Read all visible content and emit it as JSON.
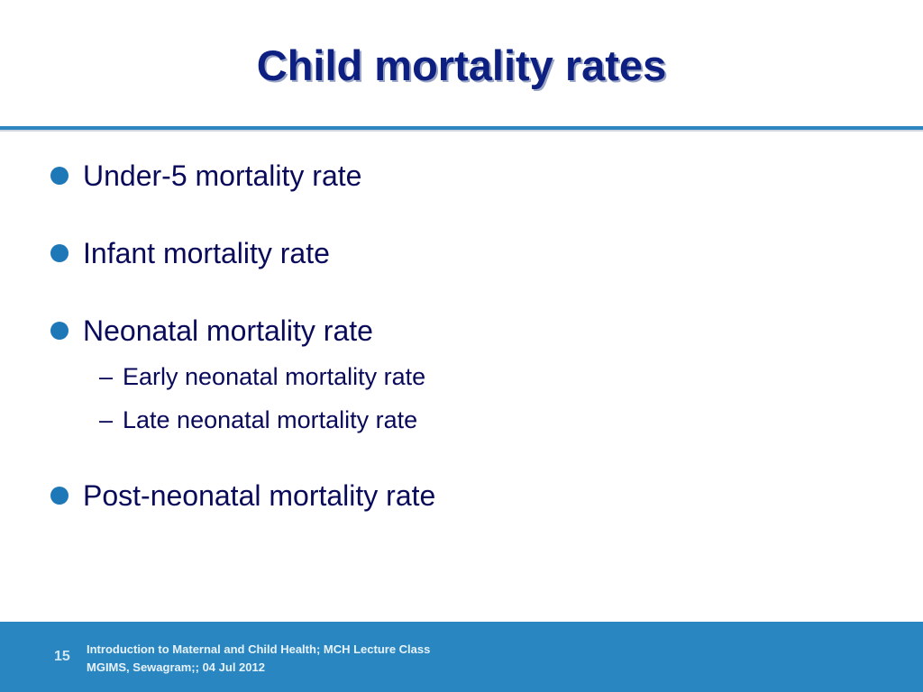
{
  "slide": {
    "title": "Child mortality rates",
    "bullets": [
      {
        "text": "Under-5 mortality rate"
      },
      {
        "text": "Infant mortality rate"
      },
      {
        "text": "Neonatal mortality rate"
      },
      {
        "text": "Post-neonatal mortality rate"
      }
    ],
    "sub_bullets": [
      {
        "dash": "–",
        "text": "Early neonatal mortality rate"
      },
      {
        "dash": "–",
        "text": "Late neonatal mortality rate"
      }
    ],
    "bullet_icon": "filled-circle-icon",
    "colors": {
      "title": "#0d1f80",
      "body_text": "#0a0a5a",
      "accent": "#2a86c0"
    }
  },
  "footer": {
    "page_number": "15",
    "line1": "Introduction to Maternal and Child Health; MCH Lecture Class",
    "line2": "MGIMS, Sewagram;; 04 Jul  2012"
  }
}
